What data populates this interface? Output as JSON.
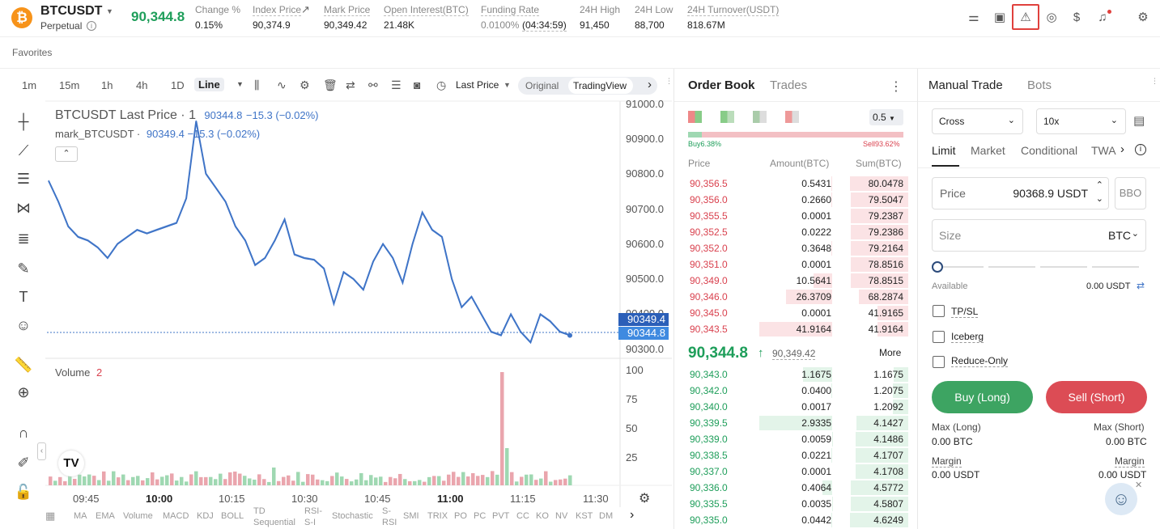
{
  "header": {
    "coin_glyph": "₿",
    "symbol": "BTCUSDT",
    "contract": "Perpetual",
    "last_price": "90,344.8",
    "stats": [
      {
        "label": "Change %",
        "value": "0.15%"
      },
      {
        "label": "Index Price",
        "value": "90,374.9"
      },
      {
        "label": "Mark Price",
        "value": "90,349.42"
      },
      {
        "label": "Open Interest(BTC)",
        "value": "21.48K"
      },
      {
        "label": "Funding Rate",
        "value": "0.0100%",
        "value2": "(04:34:59)"
      },
      {
        "label": "24H High",
        "value": "91,450"
      },
      {
        "label": "24H Low",
        "value": "88,700"
      },
      {
        "label": "24H Turnover(USDT)",
        "value": "818.67M"
      }
    ],
    "icons": [
      "sliders-icon",
      "card-icon",
      "alert-icon",
      "compass-icon",
      "dollar-icon",
      "bell-icon",
      "settings-icon"
    ]
  },
  "favorites": "Favorites",
  "chart_toolbar": {
    "timeframes": [
      "1m",
      "15m",
      "1h",
      "4h",
      "1D",
      "Line"
    ],
    "price_type": "Last Price",
    "views": [
      "Original",
      "TradingView"
    ],
    "active_view": "TradingView"
  },
  "chart": {
    "title": "BTCUSDT Last Price · 1",
    "title_value": "90344.8",
    "title_change": "−15.3 (−0.02%)",
    "mark_label": "mark_BTCUSDT ·",
    "mark_value": "90349.4",
    "mark_change": "−15.3 (−0.02%)",
    "y_ticks": [
      "91000.0",
      "90900.0",
      "90800.0",
      "90700.0",
      "90600.0",
      "90500.0",
      "90400.0",
      "90300.0"
    ],
    "price_tag_mark": "90349.4",
    "price_tag_last": "90344.8",
    "volume_label": "Volume",
    "volume_value": "2",
    "vol_ticks": [
      "100",
      "75",
      "50",
      "25"
    ],
    "x_ticks": [
      "09:45",
      "10:00",
      "10:15",
      "10:30",
      "10:45",
      "11:00",
      "11:15",
      "11:30"
    ],
    "indicators": [
      "MA",
      "EMA",
      "Volume",
      "MACD",
      "KDJ",
      "BOLL",
      "TD Sequential",
      "RSI-S-I",
      "Stochastic",
      "S-RSI",
      "SMI",
      "TRIX",
      "PO",
      "PC",
      "PVT",
      "CC",
      "KO",
      "NV",
      "KST",
      "DM"
    ]
  },
  "chart_data": {
    "type": "line",
    "ylim": [
      90300,
      91000
    ],
    "series": [
      {
        "name": "BTCUSDT Last Price",
        "values": [
          90780,
          90720,
          90650,
          90620,
          90610,
          90590,
          90560,
          90600,
          90620,
          90640,
          90630,
          90640,
          90650,
          90660,
          90730,
          90950,
          90800,
          90760,
          90720,
          90650,
          90610,
          90540,
          90560,
          90610,
          90670,
          90570,
          90560,
          90555,
          90530,
          90430,
          90520,
          90500,
          90470,
          90550,
          90600,
          90560,
          90490,
          90600,
          90690,
          90640,
          90620,
          90500,
          90420,
          90450,
          90400,
          90350,
          90340,
          90400,
          90350,
          90320,
          90400,
          90380,
          90350,
          90340
        ]
      }
    ]
  },
  "order_book": {
    "tabs": [
      "Order Book",
      "Trades"
    ],
    "precision": "0.5",
    "buy_pct": "Buy6.38%",
    "sell_pct": "Sell93.62%",
    "col_price": "Price",
    "col_amount": "Amount(BTC)",
    "col_sum": "Sum(BTC)",
    "asks": [
      [
        "90,356.5",
        "0.5431",
        "80.0478"
      ],
      [
        "90,356.0",
        "0.2660",
        "79.5047"
      ],
      [
        "90,355.5",
        "0.0001",
        "79.2387"
      ],
      [
        "90,352.5",
        "0.0222",
        "79.2386"
      ],
      [
        "90,352.0",
        "0.3648",
        "79.2164"
      ],
      [
        "90,351.0",
        "0.0001",
        "78.8516"
      ],
      [
        "90,349.0",
        "10.5641",
        "78.8515"
      ],
      [
        "90,346.0",
        "26.3709",
        "68.2874"
      ],
      [
        "90,345.0",
        "0.0001",
        "41.9165"
      ],
      [
        "90,343.5",
        "41.9164",
        "41.9164"
      ]
    ],
    "mid_price": "90,344.8",
    "mid_mark": "90,349.42",
    "more": "More",
    "bids": [
      [
        "90,343.0",
        "1.1675",
        "1.1675"
      ],
      [
        "90,342.0",
        "0.0400",
        "1.2075"
      ],
      [
        "90,340.0",
        "0.0017",
        "1.2092"
      ],
      [
        "90,339.5",
        "2.9335",
        "4.1427"
      ],
      [
        "90,339.0",
        "0.0059",
        "4.1486"
      ],
      [
        "90,338.5",
        "0.0221",
        "4.1707"
      ],
      [
        "90,337.0",
        "0.0001",
        "4.1708"
      ],
      [
        "90,336.0",
        "0.4064",
        "4.5772"
      ],
      [
        "90,335.5",
        "0.0035",
        "4.5807"
      ],
      [
        "90,335.0",
        "0.0442",
        "4.6249"
      ]
    ]
  },
  "trade": {
    "tabs": [
      "Manual Trade",
      "Bots"
    ],
    "margin_mode": "Cross",
    "leverage": "10x",
    "order_types": [
      "Limit",
      "Market",
      "Conditional",
      "TWA"
    ],
    "price_label": "Price",
    "price_value": "90368.9 USDT",
    "bbo": "BBO",
    "size_label": "Size",
    "size_unit": "BTC",
    "available_label": "Available",
    "available_value": "0.00 USDT",
    "checks": [
      "TP/SL",
      "Iceberg",
      "Reduce-Only"
    ],
    "buy_label": "Buy (Long)",
    "sell_label": "Sell (Short)",
    "max_long_label": "Max (Long)",
    "max_long_value": "0.00 BTC",
    "max_short_label": "Max (Short)",
    "max_short_value": "0.00 BTC",
    "margin_label": "Margin",
    "margin_long": "0.00 USDT",
    "margin_short": "0.00 USDT"
  }
}
